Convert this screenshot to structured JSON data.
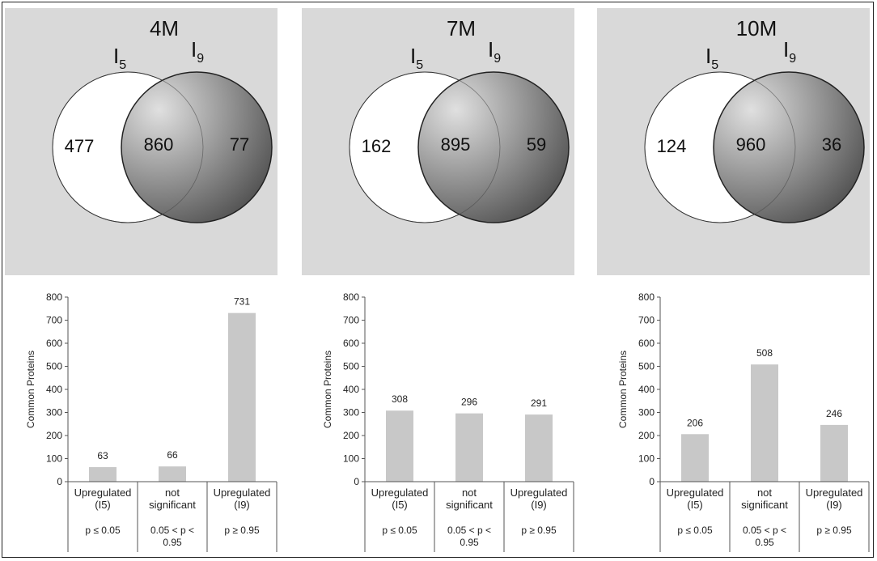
{
  "colors": {
    "panel_bg": "#d9d9d9",
    "bar_fill": "#c8c8c8",
    "i9_dark": "#555555",
    "i9_light": "#e0e0e0",
    "line": "#222222"
  },
  "venns": [
    {
      "title": "4M",
      "left_label": "I",
      "left_sub": "5",
      "right_label": "I",
      "right_sub": "9",
      "only_left": "477",
      "both": "860",
      "only_right": "77"
    },
    {
      "title": "7M",
      "left_label": "I",
      "left_sub": "5",
      "right_label": "I",
      "right_sub": "9",
      "only_left": "162",
      "both": "895",
      "only_right": "59"
    },
    {
      "title": "10M",
      "left_label": "I",
      "left_sub": "5",
      "right_label": "I",
      "right_sub": "9",
      "only_left": "124",
      "both": "960",
      "only_right": "36"
    }
  ],
  "chart_data": [
    {
      "type": "bar",
      "ylabel": "Common Proteins",
      "ylim": [
        0,
        800
      ],
      "yticks": [
        0,
        100,
        200,
        300,
        400,
        500,
        600,
        700,
        800
      ],
      "categories": [
        {
          "line1": "Upregulated",
          "line2": "(I5)",
          "p1": "p ≤ 0.05",
          "p2": ""
        },
        {
          "line1": "not",
          "line2": "significant",
          "p1": "0.05 < p <",
          "p2": "0.95"
        },
        {
          "line1": "Upregulated",
          "line2": "(I9)",
          "p1": "p ≥ 0.95",
          "p2": ""
        }
      ],
      "values": [
        63,
        66,
        731
      ],
      "data_labels": [
        "63",
        "66",
        "731"
      ],
      "grid": false
    },
    {
      "type": "bar",
      "ylabel": "Common Proteins",
      "ylim": [
        0,
        800
      ],
      "yticks": [
        0,
        100,
        200,
        300,
        400,
        500,
        600,
        700,
        800
      ],
      "categories": [
        {
          "line1": "Upregulated",
          "line2": "(I5)",
          "p1": "p ≤ 0.05",
          "p2": ""
        },
        {
          "line1": "not",
          "line2": "significant",
          "p1": "0.05 < p <",
          "p2": "0.95"
        },
        {
          "line1": "Upregulated",
          "line2": "(I9)",
          "p1": "p ≥ 0.95",
          "p2": ""
        }
      ],
      "values": [
        308,
        296,
        291
      ],
      "data_labels": [
        "308",
        "296",
        "291"
      ],
      "grid": false
    },
    {
      "type": "bar",
      "ylabel": "Common Proteins",
      "ylim": [
        0,
        800
      ],
      "yticks": [
        0,
        100,
        200,
        300,
        400,
        500,
        600,
        700,
        800
      ],
      "categories": [
        {
          "line1": "Upregulated",
          "line2": "(I5)",
          "p1": "p ≤ 0.05",
          "p2": ""
        },
        {
          "line1": "not",
          "line2": "significant",
          "p1": "0.05 < p <",
          "p2": "0.95"
        },
        {
          "line1": "Upregulated",
          "line2": "(I9)",
          "p1": "p ≥ 0.95",
          "p2": ""
        }
      ],
      "values": [
        206,
        508,
        246
      ],
      "data_labels": [
        "206",
        "508",
        "246"
      ],
      "grid": false
    }
  ]
}
